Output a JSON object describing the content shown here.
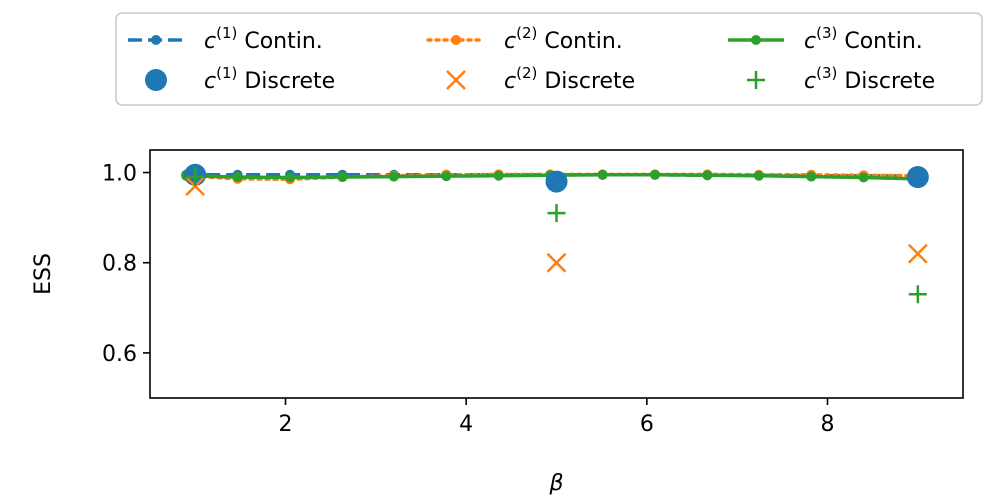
{
  "chart_data": {
    "type": "line",
    "title": "",
    "xlabel": "β",
    "ylabel": "ESS",
    "xlim": [
      0.5,
      9.5
    ],
    "ylim": [
      0.5,
      1.05
    ],
    "xticks": [
      2,
      4,
      6,
      8
    ],
    "yticks": [
      0.6,
      0.8,
      1.0
    ],
    "xtick_labels": [
      "2",
      "4",
      "6",
      "8"
    ],
    "ytick_labels": [
      "0.6",
      "0.8",
      "1.0"
    ],
    "grid": false,
    "legend_position": "top",
    "legend_columns": 3,
    "continuous_x": [
      0.9,
      1.47,
      2.05,
      2.63,
      3.2,
      3.78,
      4.36,
      4.93,
      5.51,
      6.09,
      6.67,
      7.24,
      7.82,
      8.4,
      8.97
    ],
    "series": [
      {
        "name": "c(1) Contin.",
        "name_base": "c",
        "name_sup": "(1)",
        "name_suffix": " Contin.",
        "style": "dashed-marker",
        "color": "#1f77b4",
        "values": [
          0.995,
          0.995,
          0.995,
          0.995,
          0.995,
          0.995,
          0.995,
          0.995,
          0.995,
          0.995,
          0.994,
          0.994,
          0.993,
          0.993,
          0.992
        ]
      },
      {
        "name": "c(2) Contin.",
        "name_base": "c",
        "name_sup": "(2)",
        "name_suffix": " Contin.",
        "style": "dotted-marker",
        "color": "#ff7f0e",
        "values": [
          0.993,
          0.986,
          0.985,
          0.99,
          0.993,
          0.995,
          0.996,
          0.996,
          0.996,
          0.996,
          0.996,
          0.995,
          0.995,
          0.994,
          0.993
        ]
      },
      {
        "name": "c(3) Contin.",
        "name_base": "c",
        "name_sup": "(3)",
        "name_suffix": " Contin.",
        "style": "solid-marker",
        "color": "#2ca02c",
        "values": [
          0.993,
          0.99,
          0.989,
          0.99,
          0.991,
          0.992,
          0.993,
          0.994,
          0.995,
          0.995,
          0.994,
          0.993,
          0.991,
          0.989,
          0.986
        ]
      }
    ],
    "discrete": [
      {
        "name": "c(1) Discrete",
        "name_base": "c",
        "name_sup": "(1)",
        "name_suffix": " Discrete",
        "marker": "circle",
        "color": "#1f77b4",
        "x": [
          1,
          5,
          9
        ],
        "values": [
          0.995,
          0.98,
          0.99
        ]
      },
      {
        "name": "c(2) Discrete",
        "name_base": "c",
        "name_sup": "(2)",
        "name_suffix": " Discrete",
        "marker": "x",
        "color": "#ff7f0e",
        "x": [
          1,
          5,
          9
        ],
        "values": [
          0.97,
          0.8,
          0.82
        ]
      },
      {
        "name": "c(3) Discrete",
        "name_base": "c",
        "name_sup": "(3)",
        "name_suffix": " Discrete",
        "marker": "plus",
        "color": "#2ca02c",
        "x": [
          1,
          5,
          9
        ],
        "values": [
          0.99,
          0.91,
          0.73
        ]
      }
    ]
  }
}
